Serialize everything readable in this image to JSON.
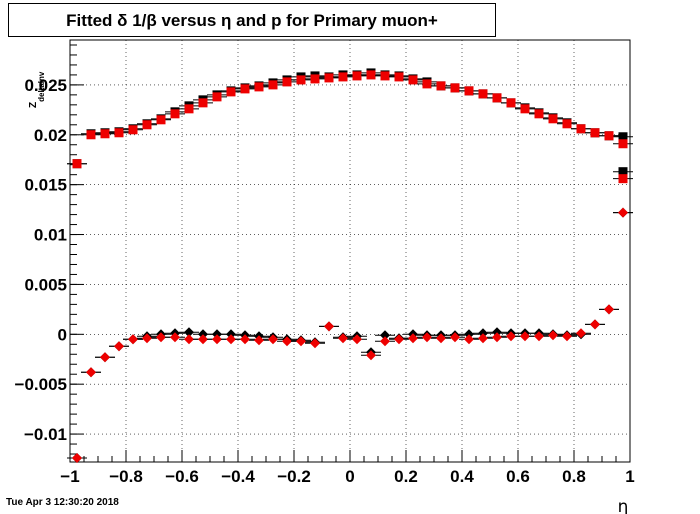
{
  "header": {
    "title": "Fitted δ 1/β versus η and p for Primary muon+"
  },
  "footer": {
    "timestamp": "Tue Apr  3 12:30:20 2018"
  },
  "chart_data": {
    "type": "scatter",
    "title": "Fitted δ 1/β versus η and p for Primary muon+",
    "xlabel": "η",
    "ylabel": "Z_deltaInv",
    "xlim": [
      -1,
      1
    ],
    "ylim": [
      -0.0128,
      0.0295
    ],
    "x_ticks": [
      -1,
      -0.8,
      -0.6,
      -0.4,
      -0.2,
      0,
      0.2,
      0.4,
      0.6,
      0.8,
      1
    ],
    "x_tick_labels": [
      "−1",
      "−0.8",
      "−0.6",
      "−0.4",
      "−0.2",
      "0",
      "0.2",
      "0.4",
      "0.6",
      "0.8",
      "1"
    ],
    "y_ticks": [
      -0.01,
      -0.005,
      0,
      0.005,
      0.01,
      0.015,
      0.02,
      0.025
    ],
    "y_tick_labels": [
      "−0.01",
      "−0.005",
      "0",
      "0.005",
      "0.01",
      "0.015",
      "0.02",
      "0.025"
    ],
    "grid": true,
    "x": [
      -0.975,
      -0.925,
      -0.875,
      -0.825,
      -0.775,
      -0.725,
      -0.675,
      -0.625,
      -0.575,
      -0.525,
      -0.475,
      -0.425,
      -0.375,
      -0.325,
      -0.275,
      -0.225,
      -0.175,
      -0.125,
      -0.075,
      -0.025,
      0.025,
      0.075,
      0.125,
      0.175,
      0.225,
      0.275,
      0.325,
      0.375,
      0.425,
      0.475,
      0.525,
      0.575,
      0.625,
      0.675,
      0.725,
      0.775,
      0.825,
      0.875,
      0.925,
      0.975
    ],
    "series": [
      {
        "marker": "square",
        "color": "#000000",
        "values": [
          0.0171,
          0.0201,
          0.0202,
          0.0203,
          0.0206,
          0.0211,
          0.0216,
          0.0223,
          0.0229,
          0.0235,
          0.024,
          0.0244,
          0.0247,
          0.0249,
          0.0252,
          0.0255,
          0.0258,
          0.0259,
          0.0258,
          0.026,
          0.026,
          0.0262,
          0.026,
          0.0259,
          0.0256,
          0.0253,
          0.0249,
          0.0247,
          0.0244,
          0.0241,
          0.0237,
          0.0232,
          0.0227,
          0.0222,
          0.0217,
          0.0212,
          0.0206,
          0.0202,
          0.0199,
          0.0198
        ]
      },
      {
        "marker": "square",
        "color": "#ee0000",
        "values": [
          0.0171,
          0.02,
          0.0201,
          0.0202,
          0.0205,
          0.021,
          0.0215,
          0.0221,
          0.0226,
          0.0232,
          0.0238,
          0.0243,
          0.0246,
          0.0248,
          0.025,
          0.0253,
          0.0255,
          0.0256,
          0.0257,
          0.0258,
          0.0259,
          0.026,
          0.0259,
          0.0258,
          0.0255,
          0.0251,
          0.0249,
          0.0247,
          0.0244,
          0.0241,
          0.0237,
          0.0232,
          0.0226,
          0.0221,
          0.0216,
          0.0211,
          0.0206,
          0.0202,
          0.0199,
          0.0191
        ]
      },
      {
        "marker": "square",
        "color": "#000000",
        "xs": [
          0.975
        ],
        "values": [
          0.0163
        ]
      },
      {
        "marker": "square",
        "color": "#ee0000",
        "xs": [
          0.975
        ],
        "values": [
          0.0156
        ]
      },
      {
        "marker": "diamond",
        "color": "#000000",
        "values": [
          -0.0124,
          -0.0038,
          -0.0023,
          -0.0012,
          -0.0005,
          -0.0002,
          0.0,
          0.0001,
          0.0002,
          0.0,
          0.0,
          0.0,
          -0.0001,
          -0.0002,
          -0.0003,
          -0.0005,
          -0.0006,
          -0.0008,
          0.0008,
          -0.0003,
          -0.0002,
          -0.0018,
          -0.0001,
          -0.0004,
          0.0,
          -0.0001,
          -0.0001,
          -0.0001,
          0.0,
          0.0001,
          0.0002,
          0.0001,
          0.0001,
          0.0001,
          0.0,
          -0.0001,
          0.0,
          0.001,
          0.0025,
          0.0122
        ]
      },
      {
        "marker": "diamond",
        "color": "#ee0000",
        "values": [
          -0.0124,
          -0.0038,
          -0.0023,
          -0.0012,
          -0.0005,
          -0.0004,
          -0.0003,
          -0.0003,
          -0.0005,
          -0.0005,
          -0.0005,
          -0.0005,
          -0.0005,
          -0.0006,
          -0.0005,
          -0.0007,
          -0.0007,
          -0.0009,
          0.0008,
          -0.0004,
          -0.0005,
          -0.0021,
          -0.0007,
          -0.0005,
          -0.0004,
          -0.0003,
          -0.0004,
          -0.0003,
          -0.0005,
          -0.0004,
          -0.0003,
          -0.0002,
          -0.0002,
          -0.0002,
          -0.0001,
          -0.0002,
          0.0001,
          0.001,
          0.0025,
          0.0122
        ]
      }
    ]
  }
}
